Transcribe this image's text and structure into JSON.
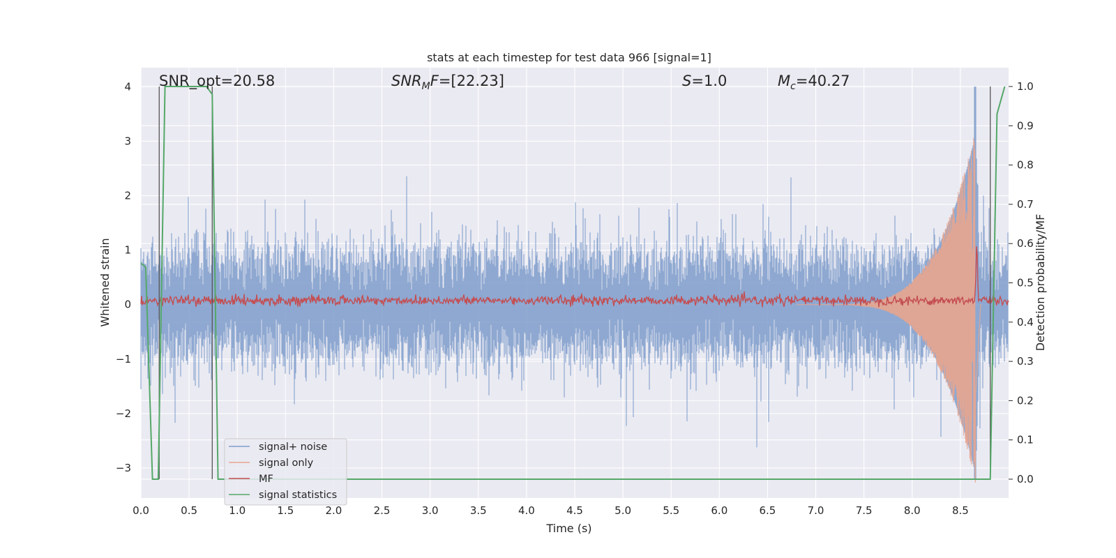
{
  "chart_data": {
    "type": "line",
    "title": "stats at each timestep for test data 966 [signal=1]",
    "xlabel": "Time (s)",
    "ylabel_left": "Whitened strain",
    "ylabel_right": "Detection probability/MF",
    "xlim": [
      0.0,
      9.0
    ],
    "ylim_left": [
      -3.55,
      4.35
    ],
    "ylim_right": [
      -0.048,
      1.048
    ],
    "x_ticks": [
      "0.0",
      "0.5",
      "1.0",
      "1.5",
      "2.0",
      "2.5",
      "3.0",
      "3.5",
      "4.0",
      "4.5",
      "5.0",
      "5.5",
      "6.0",
      "6.5",
      "7.0",
      "7.5",
      "8.0",
      "8.5"
    ],
    "y_ticks_left": [
      "−3",
      "−2",
      "−1",
      "0",
      "1",
      "2",
      "3",
      "4"
    ],
    "y_ticks_right": [
      "0.0",
      "0.1",
      "0.2",
      "0.3",
      "0.4",
      "0.5",
      "0.6",
      "0.7",
      "0.8",
      "0.9",
      "1.0"
    ],
    "grid": true,
    "legend_position": "lower-left",
    "annotations": {
      "snr_opt": "SNR_opt=20.58",
      "snr_mf_label": "SNR",
      "snr_mf_sub": "M",
      "snr_mf_rest": "F",
      "snr_mf_value": "=[22.23]",
      "s_label": "S",
      "s_value": "=1.0",
      "mc_label": "M",
      "mc_sub": "c",
      "mc_value": "=40.27"
    },
    "series": [
      {
        "name": "signal+ noise",
        "color": "#7e9ccb",
        "axis": "left",
        "description_values": {
          "noise_std": 0.42,
          "max_value": 4.0,
          "min_value": -3.2,
          "x_range": [
            0.0,
            9.0
          ]
        }
      },
      {
        "name": "signal only",
        "color": "#e8a58e",
        "axis": "left",
        "chirp": {
          "t_start": 7.0,
          "t_merge": 8.66,
          "peak_amplitude": 3.3
        }
      },
      {
        "name": "MF",
        "color": "#c44e52",
        "axis": "right",
        "baseline": 0.455,
        "peak": {
          "x": 8.67,
          "y": 0.6
        }
      },
      {
        "name": "signal statistics",
        "color": "#55a868",
        "axis": "right",
        "x": [
          0.0,
          0.05,
          0.12,
          0.18,
          0.25,
          0.68,
          0.74,
          0.8,
          8.81,
          8.88,
          8.96
        ],
        "y": [
          0.55,
          0.54,
          0.0,
          0.0,
          1.0,
          1.0,
          0.98,
          0.0,
          0.0,
          0.93,
          1.0
        ]
      }
    ],
    "vertical_markers": [
      0.19,
      0.74,
      8.81
    ],
    "colors": {
      "plot_background": "#eaeaf2",
      "grid": "#ffffff",
      "marker_line": "#555555"
    }
  }
}
